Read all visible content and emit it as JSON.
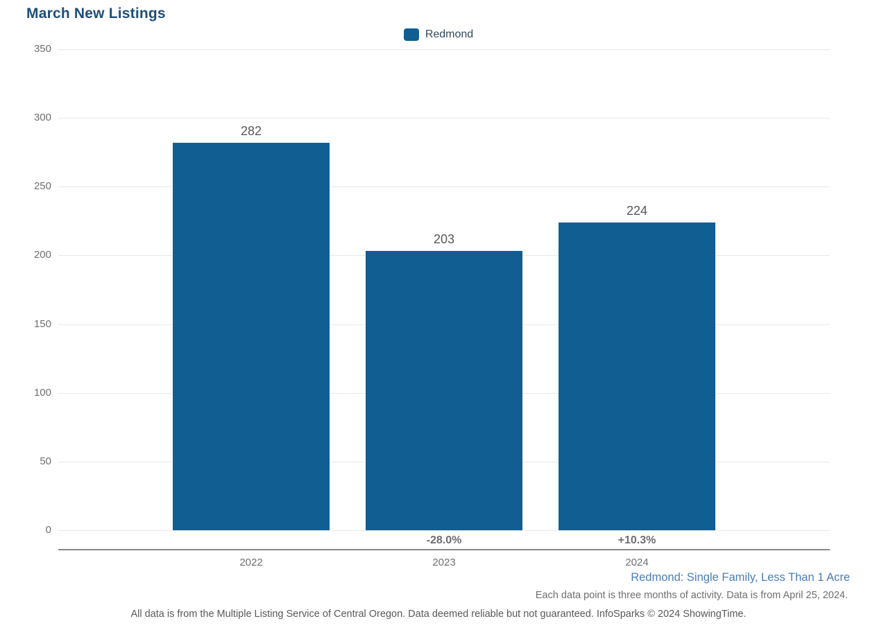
{
  "title": "March New Listings",
  "legend": {
    "label": "Redmond",
    "swatch_color": "#115e93"
  },
  "chart_data": {
    "type": "bar",
    "title": "March New Listings",
    "categories": [
      "2022",
      "2023",
      "2024"
    ],
    "series": [
      {
        "name": "Redmond",
        "values": [
          282,
          203,
          224
        ]
      }
    ],
    "value_labels": [
      "282",
      "203",
      "224"
    ],
    "pct_change_labels": [
      "",
      "-28.0%",
      "+10.3%"
    ],
    "yticks": [
      0,
      50,
      100,
      150,
      200,
      250,
      300,
      350
    ],
    "ylim": [
      0,
      350
    ],
    "xlabel": "",
    "ylabel": "",
    "bar_color": "#115e93",
    "grid": true,
    "legend_position": "top-center"
  },
  "footnotes": {
    "segment": "Redmond: Single Family, Less Than 1 Acre",
    "data_note": "Each data point is three months of activity. Data is from April 25, 2024.",
    "disclaimer": "All data is from the Multiple Listing Service of Central Oregon. Data deemed reliable but not guaranteed. InfoSparks © 2024 ShowingTime."
  }
}
